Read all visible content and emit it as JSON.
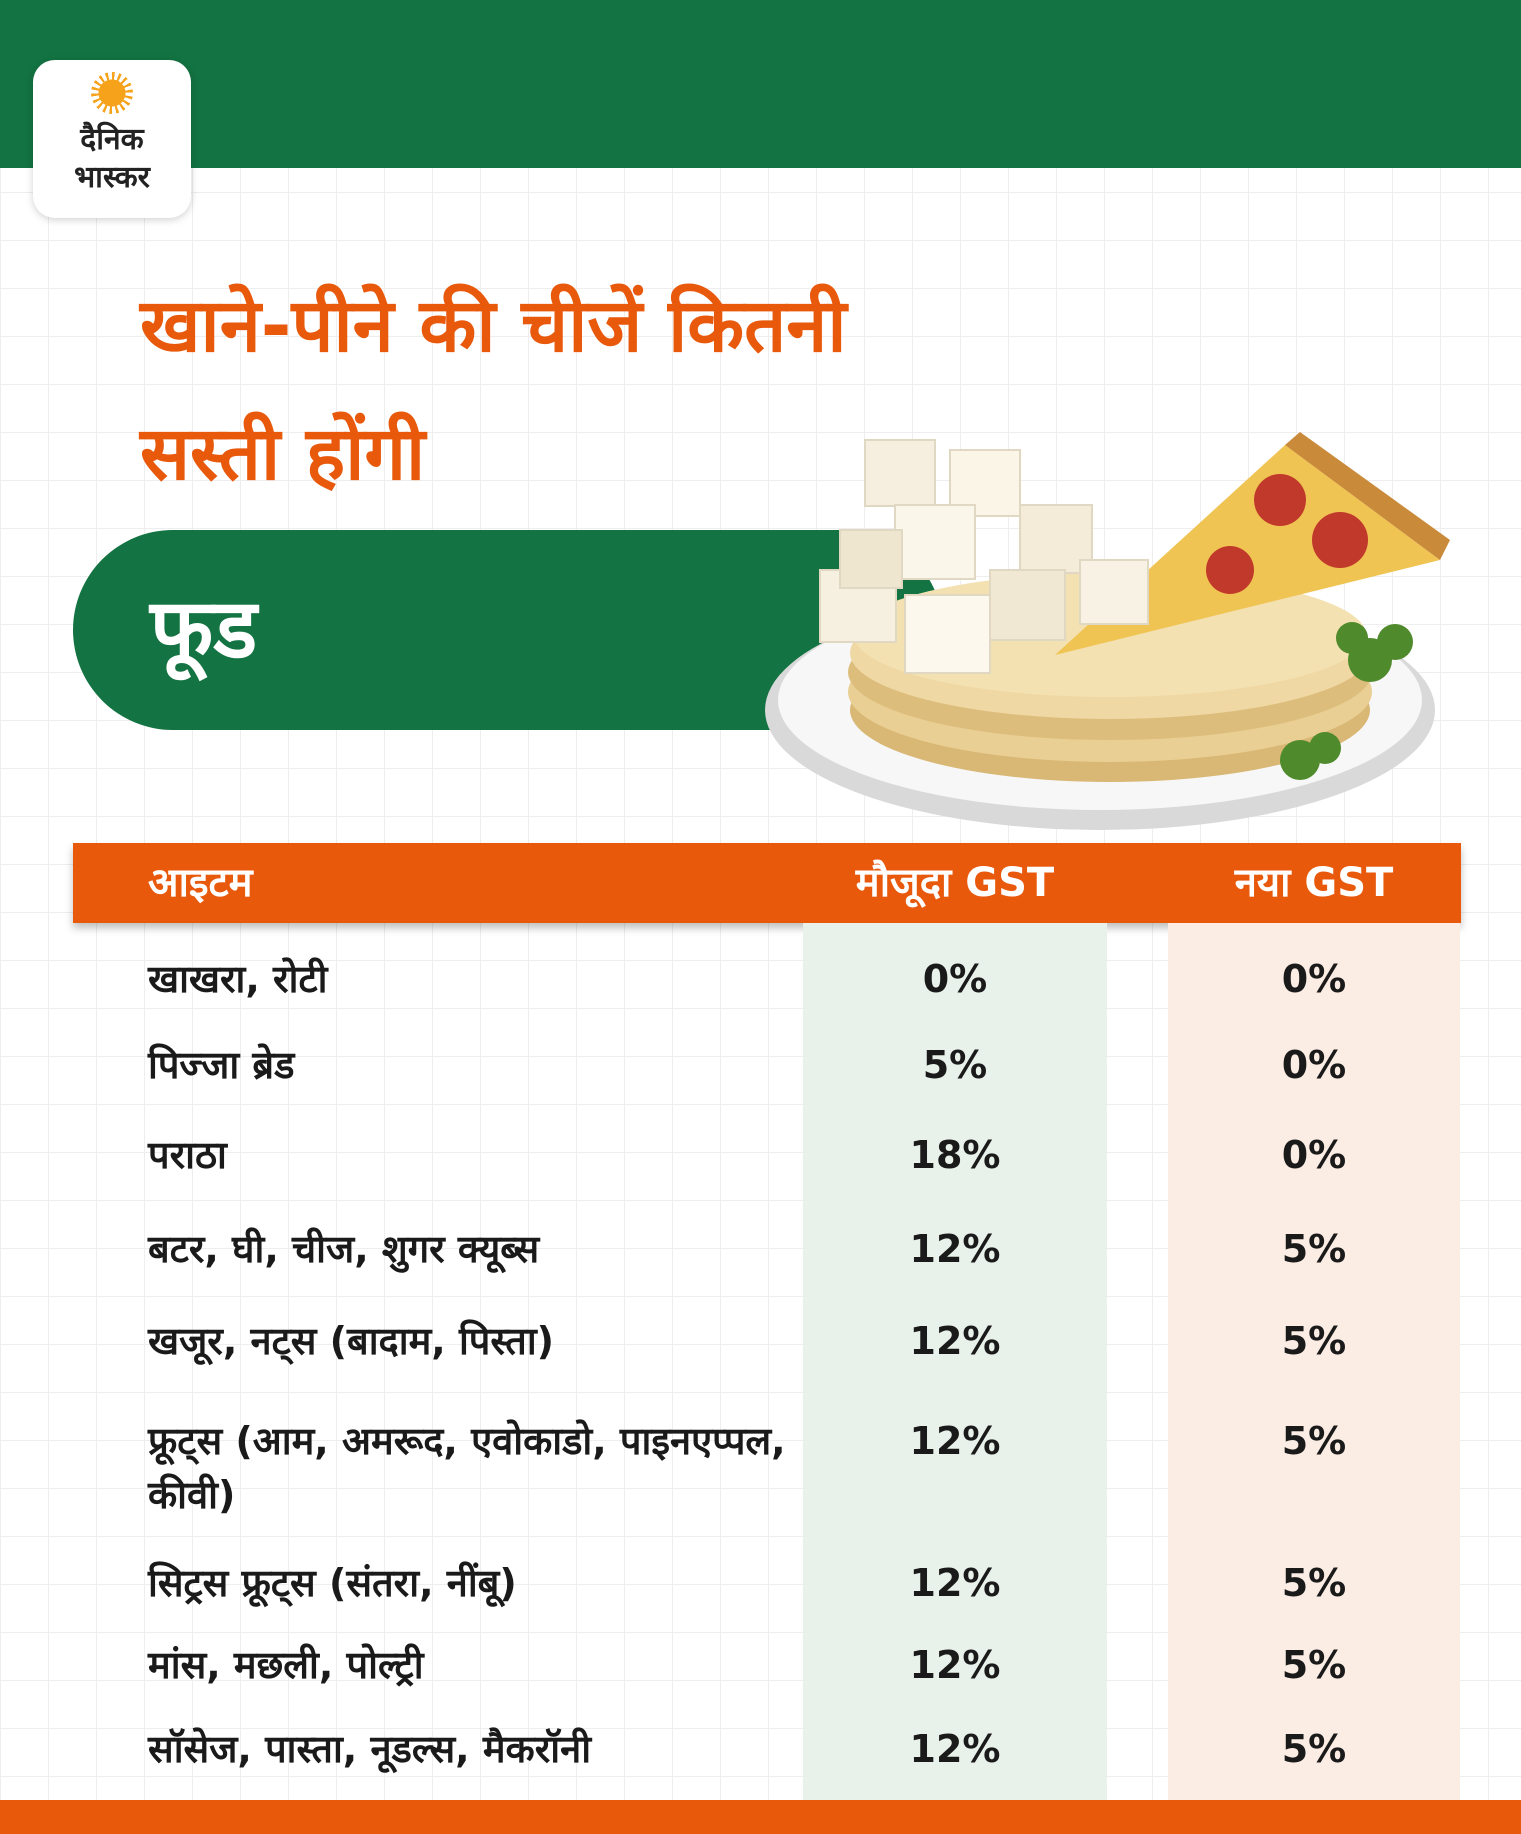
{
  "brand": {
    "line1": "दैनिक",
    "line2": "भास्कर"
  },
  "headline": {
    "line1": "खाने-पीने की चीजें कितनी",
    "line2": "सस्ती होंगी"
  },
  "section_label": "फूड",
  "table": {
    "headers": {
      "item": "आइटम",
      "current": "मौजूदा GST",
      "new": "नया GST"
    },
    "rows": [
      {
        "item": "खाखरा, रोटी",
        "current": "0%",
        "new": "0%"
      },
      {
        "item": "पिज्जा ब्रेड",
        "current": "5%",
        "new": "0%"
      },
      {
        "item": "पराठा",
        "current": "18%",
        "new": "0%"
      },
      {
        "item": "बटर, घी, चीज, शुगर क्यूब्स",
        "current": "12%",
        "new": "5%"
      },
      {
        "item": "खजूर, नट्स (बादाम, पिस्ता)",
        "current": "12%",
        "new": "5%"
      },
      {
        "item": "फ्रूट्स (आम, अमरूद, एवोकाडो, पाइनएप्पल, कीवी)",
        "current": "12%",
        "new": "5%"
      },
      {
        "item": "सिट्रस फ्रूट्स (संतरा, नींबू)",
        "current": "12%",
        "new": "5%"
      },
      {
        "item": "मांस, मछली, पोल्ट्री",
        "current": "12%",
        "new": "5%"
      },
      {
        "item": "सॉसेज, पास्ता, नूडल्स, मैकरॉनी",
        "current": "12%",
        "new": "5%"
      }
    ]
  },
  "colors": {
    "green": "#137342",
    "orange": "#e8590c",
    "current_col_bg": "#e8f1ea",
    "new_col_bg": "#fcede4"
  },
  "icons": {
    "logo": "sun-logo-icon",
    "illustration": "food-plate-icon"
  }
}
